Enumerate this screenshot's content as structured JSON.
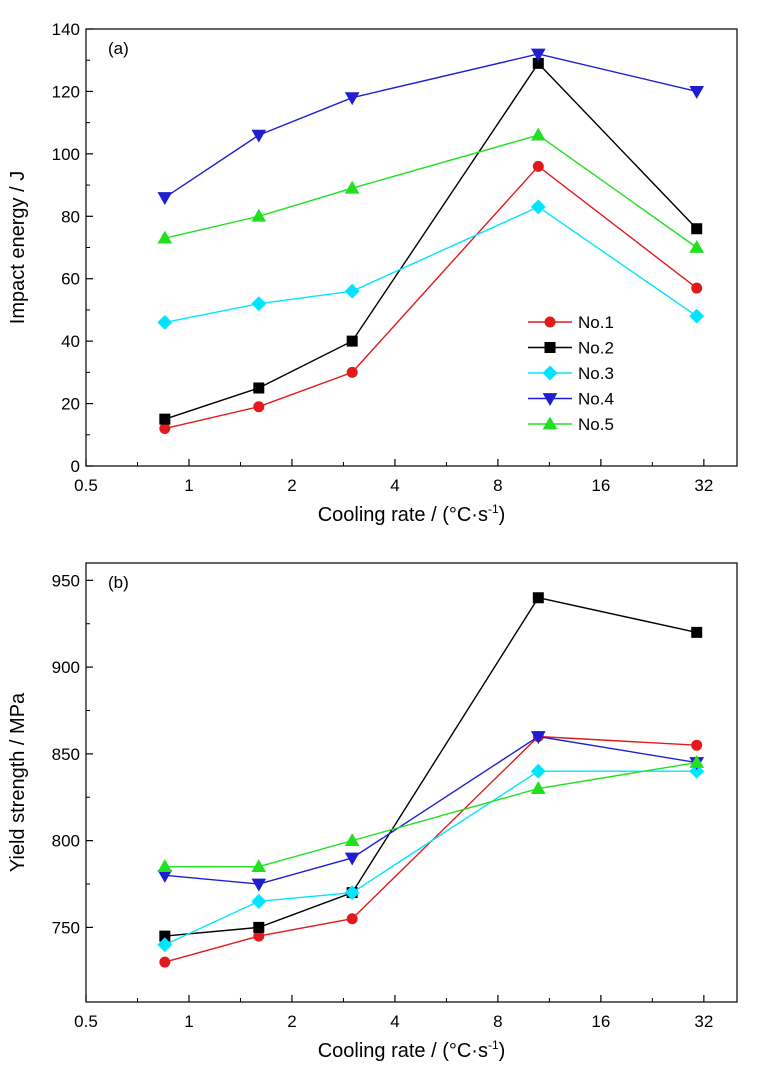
{
  "chart_data": [
    {
      "type": "line",
      "panel_label": "(a)",
      "xlabel": "Cooling rate / (°C·s",
      "xlabel_sup": "-1",
      "xlabel_close": ")",
      "ylabel": "Impact energy / J",
      "x_scale": "log2",
      "xlim": [
        0.5,
        40
      ],
      "ylim": [
        0,
        140
      ],
      "x_ticks": [
        0.5,
        1,
        2,
        4,
        8,
        16,
        32
      ],
      "x_tick_labels": [
        "0.5",
        "1",
        "2",
        "4",
        "8",
        "16",
        "32"
      ],
      "y_ticks": [
        0,
        20,
        40,
        60,
        80,
        100,
        120,
        140
      ],
      "y_tick_labels": [
        "0",
        "20",
        "40",
        "60",
        "80",
        "100",
        "120",
        "140"
      ],
      "x": [
        0.85,
        1.6,
        3.0,
        10.5,
        30.5
      ],
      "legend_position": "lower-right",
      "series": [
        {
          "name": "No.1",
          "color": "#e31a1c",
          "marker": "circle",
          "values": [
            12,
            19,
            30,
            96,
            57
          ]
        },
        {
          "name": "No.2",
          "color": "#000000",
          "marker": "square",
          "values": [
            15,
            25,
            40,
            129,
            76
          ]
        },
        {
          "name": "No.3",
          "color": "#00e5ff",
          "marker": "diamond",
          "values": [
            46,
            52,
            56,
            83,
            48
          ]
        },
        {
          "name": "No.4",
          "color": "#1f1fd0",
          "marker": "triangle-down",
          "values": [
            86,
            106,
            118,
            132,
            120
          ]
        },
        {
          "name": "No.5",
          "color": "#20e020",
          "marker": "triangle-up",
          "values": [
            73,
            80,
            89,
            106,
            70
          ]
        }
      ]
    },
    {
      "type": "line",
      "panel_label": "(b)",
      "xlabel": "Cooling rate / (°C·s",
      "xlabel_sup": "-1",
      "xlabel_close": ")",
      "ylabel": "Yield strength / MPa",
      "x_scale": "log2",
      "xlim": [
        0.5,
        40
      ],
      "ylim": [
        707,
        960
      ],
      "x_ticks": [
        0.5,
        1,
        2,
        4,
        8,
        16,
        32
      ],
      "x_tick_labels": [
        "0.5",
        "1",
        "2",
        "4",
        "8",
        "16",
        "32"
      ],
      "y_ticks": [
        750,
        800,
        850,
        900,
        950
      ],
      "y_tick_labels": [
        "750",
        "800",
        "850",
        "900",
        "950"
      ],
      "x": [
        0.85,
        1.6,
        3.0,
        10.5,
        30.5
      ],
      "series": [
        {
          "name": "No.1",
          "color": "#e31a1c",
          "marker": "circle",
          "values": [
            730,
            745,
            755,
            860,
            855
          ]
        },
        {
          "name": "No.2",
          "color": "#000000",
          "marker": "square",
          "values": [
            745,
            750,
            770,
            940,
            920
          ]
        },
        {
          "name": "No.3",
          "color": "#00e5ff",
          "marker": "diamond",
          "values": [
            740,
            765,
            770,
            840,
            840
          ]
        },
        {
          "name": "No.4",
          "color": "#1f1fd0",
          "marker": "triangle-down",
          "values": [
            780,
            775,
            790,
            860,
            845
          ]
        },
        {
          "name": "No.5",
          "color": "#20e020",
          "marker": "triangle-up",
          "values": [
            785,
            785,
            800,
            830,
            845
          ]
        }
      ]
    }
  ]
}
